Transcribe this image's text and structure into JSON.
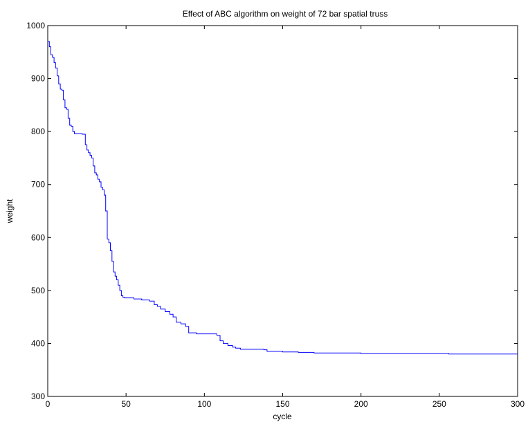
{
  "chart_data": {
    "type": "line",
    "title": "Effect of ABC algorithm on weight of 72 bar spatial truss",
    "xlabel": "cycle",
    "ylabel": "weight",
    "xlim": [
      0,
      300
    ],
    "ylim": [
      300,
      1000
    ],
    "xticks": [
      0,
      50,
      100,
      150,
      200,
      250,
      300
    ],
    "yticks": [
      300,
      400,
      500,
      600,
      700,
      800,
      900,
      1000
    ],
    "grid": false,
    "line_color": "#0000ff",
    "series": [
      {
        "x": [
          0,
          1,
          2,
          3,
          4,
          5,
          6,
          7,
          8,
          9,
          10,
          11,
          12,
          13,
          14,
          15,
          16,
          17,
          18,
          19,
          20,
          21,
          22,
          23,
          24,
          25,
          26,
          27,
          28,
          29,
          30,
          31,
          32,
          33,
          34,
          35,
          36,
          37,
          38,
          39,
          40,
          41,
          42,
          43,
          44,
          45,
          46,
          47,
          48,
          49,
          50,
          55,
          60,
          65,
          68,
          70,
          72,
          75,
          78,
          80,
          82,
          85,
          88,
          90,
          95,
          100,
          105,
          108,
          110,
          112,
          115,
          118,
          120,
          123,
          130,
          138,
          140,
          150,
          160,
          170,
          180,
          200,
          230,
          256,
          300
        ],
        "y": [
          970,
          960,
          945,
          940,
          930,
          920,
          905,
          890,
          880,
          878,
          860,
          845,
          842,
          825,
          812,
          810,
          800,
          796,
          796,
          796,
          796,
          796,
          795,
          795,
          775,
          765,
          760,
          755,
          750,
          735,
          722,
          718,
          710,
          705,
          695,
          690,
          680,
          650,
          597,
          590,
          575,
          555,
          535,
          527,
          520,
          510,
          500,
          490,
          487,
          486,
          486,
          484,
          482,
          480,
          473,
          470,
          465,
          460,
          455,
          450,
          440,
          437,
          432,
          420,
          418,
          418,
          418,
          415,
          405,
          400,
          396,
          393,
          391,
          389,
          389,
          388,
          385,
          384,
          383,
          382,
          382,
          381,
          381,
          380,
          380
        ]
      }
    ]
  }
}
